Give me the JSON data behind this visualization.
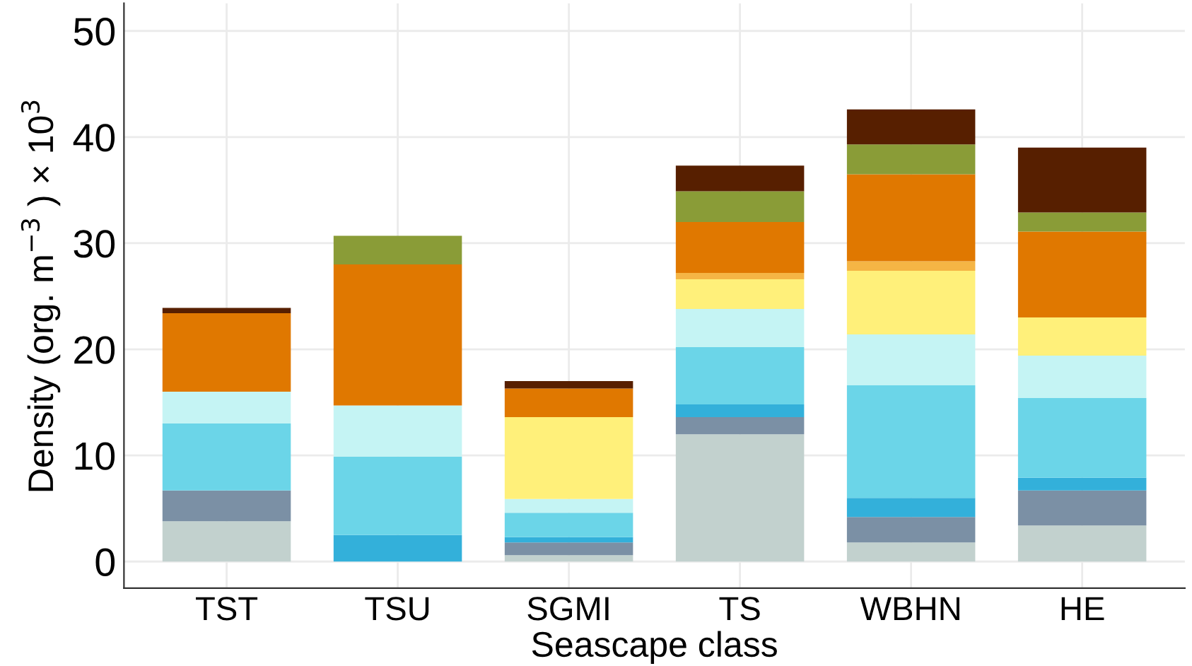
{
  "chart_data": {
    "type": "bar",
    "stacked": true,
    "xlabel": "Seascape class",
    "ylabel": "Density (org. m$^{−3}$ ) × 10$^{3}$",
    "categories": [
      "TST",
      "TSU",
      "SGMI",
      "TS",
      "WBHN",
      "HE"
    ],
    "series": [
      {
        "color": "#c2d1ce",
        "values": [
          3.8,
          0,
          0.6,
          12.0,
          1.8,
          3.4
        ]
      },
      {
        "color": "#7b90a5",
        "values": [
          2.9,
          0,
          1.2,
          1.6,
          2.4,
          3.3
        ]
      },
      {
        "color": "#33b0da",
        "values": [
          0,
          2.5,
          0.5,
          1.2,
          1.8,
          1.2
        ]
      },
      {
        "color": "#6bd5e8",
        "values": [
          6.3,
          7.4,
          2.3,
          5.4,
          10.6,
          7.5
        ]
      },
      {
        "color": "#c5f4f4",
        "values": [
          3.0,
          4.8,
          1.3,
          3.6,
          4.8,
          4.0
        ]
      },
      {
        "color": "#fff07a",
        "values": [
          0,
          0,
          7.7,
          2.8,
          6.0,
          3.6
        ]
      },
      {
        "color": "#f5b545",
        "values": [
          0,
          0,
          0,
          0.6,
          0.9,
          0
        ]
      },
      {
        "color": "#e07800",
        "values": [
          7.4,
          13.3,
          2.7,
          4.8,
          8.2,
          8.1
        ]
      },
      {
        "color": "#8a9c37",
        "values": [
          0,
          2.7,
          0,
          2.9,
          2.8,
          1.8
        ]
      },
      {
        "color": "#571f00",
        "values": [
          0.5,
          0,
          0.7,
          2.4,
          3.3,
          6.1
        ]
      }
    ],
    "ylim": [
      -2.5,
      52.6
    ],
    "yticks": [
      0,
      10,
      20,
      30,
      40,
      50
    ],
    "grid": true
  }
}
